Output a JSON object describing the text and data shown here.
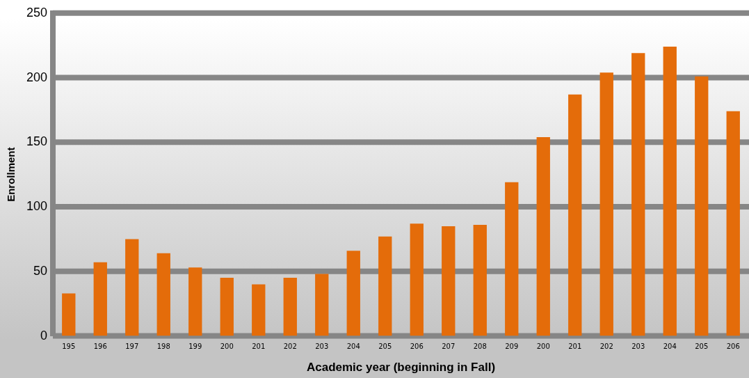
{
  "chart_data": {
    "type": "bar",
    "xlabel": "Academic year (beginning in Fall)",
    "ylabel": "Enrollment",
    "categories": [
      "195",
      "196",
      "197",
      "198",
      "199",
      "200",
      "201",
      "202",
      "203",
      "204",
      "205",
      "206",
      "207",
      "208",
      "209",
      "200",
      "201",
      "202",
      "203",
      "204",
      "205",
      "206"
    ],
    "values": [
      33,
      57,
      75,
      64,
      53,
      45,
      40,
      45,
      48,
      66,
      77,
      87,
      85,
      86,
      119,
      154,
      187,
      204,
      219,
      224,
      201,
      174
    ],
    "color": "#e46c0a",
    "ylim": [
      0,
      250
    ],
    "yticks": [
      0,
      50,
      100,
      150,
      200,
      250
    ],
    "grid": "y"
  }
}
